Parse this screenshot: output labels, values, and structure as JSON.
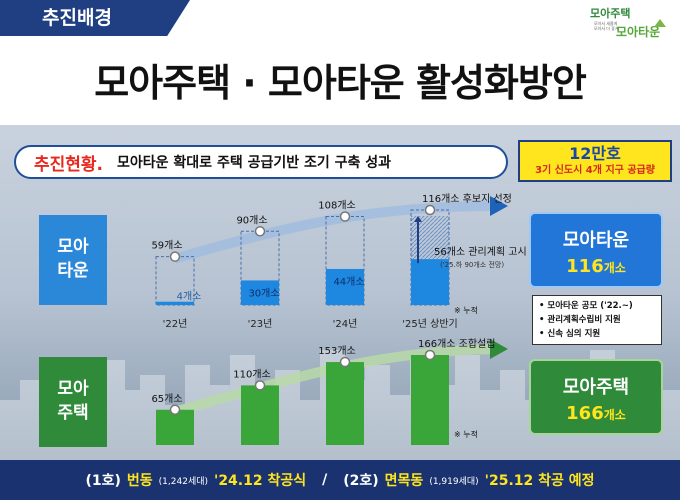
{
  "header": {
    "tag": "추진배경",
    "title": "모아주택 · 모아타운 활성화방안",
    "logo_line1": "모아주택",
    "logo_small": [
      "모아서 새롭게",
      "모아서 더 좋게"
    ],
    "logo_line2": "모아타운"
  },
  "status": {
    "label": "추진현황.",
    "text": "모아타운 확대로 주택 공급기반 조기 구축 성과"
  },
  "badge": {
    "big": "12만호",
    "small": "3기 신도시 4개 지구 공급량"
  },
  "sides": {
    "town": [
      "모아",
      "타운"
    ],
    "house": [
      "모아",
      "주택"
    ]
  },
  "chart_data": [
    {
      "type": "bar",
      "name": "모아타운",
      "categories": [
        "'22년",
        "'23년",
        "'24년",
        "'25년 상반기"
      ],
      "cumulative": [
        59,
        90,
        108,
        116
      ],
      "cumulative_labels": [
        "59개소",
        "90개소",
        "108개소",
        "116개소 후보지 선정"
      ],
      "management_plan": [
        4,
        30,
        44,
        56
      ],
      "management_labels": [
        "4개소",
        "30개소",
        "44개소",
        "56개소 관리계획 고시"
      ],
      "note_sub": "('25.하 90개소 전망)",
      "note": "※ 누적"
    },
    {
      "type": "bar",
      "name": "모아주택",
      "categories": [
        "'22",
        "'23",
        "'24",
        "'25"
      ],
      "values": [
        65,
        110,
        153,
        166
      ],
      "value_labels": [
        "65개소",
        "110개소",
        "153개소",
        "166개소 조합설립"
      ],
      "note": "※ 누적"
    }
  ],
  "results": {
    "town_name": "모아타운",
    "town_value": "116",
    "town_unit": "개소",
    "house_name": "모아주택",
    "house_value": "166",
    "house_unit": "개소"
  },
  "notes": [
    "• 모아타운 공모 ('22.~)",
    "• 관리계획수립비 지원",
    "• 신속 심의 지원"
  ],
  "bottom": {
    "p1": "(1호)",
    "p1_place": "번동",
    "p1_units": "(1,242세대)",
    "p1_date": "'24.12 착공식",
    "slash": "/",
    "p2": "(2호)",
    "p2_place": "면목동",
    "p2_units": "(1,919세대)",
    "p2_date": "'25.12 착공 예정"
  },
  "colors": {
    "navy": "#1a3370",
    "town_blue": "#2b87d8",
    "house_green": "#2f8a3a",
    "yellow": "#ffe51e",
    "red": "#e8281e"
  }
}
